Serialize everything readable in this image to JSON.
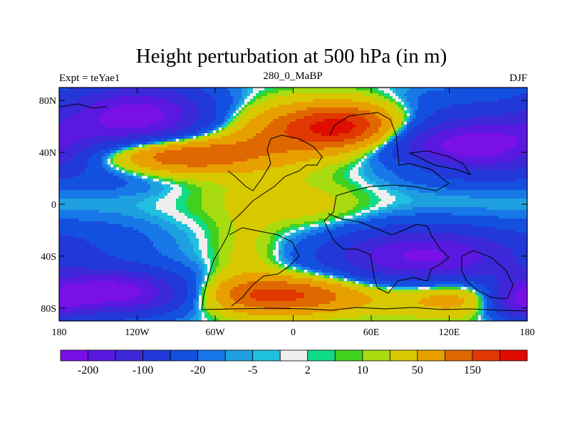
{
  "chart_data": {
    "type": "heatmap",
    "title": "Height perturbation at 500 hPa (in m)",
    "subtitle_left": "Expt = teYae1",
    "subtitle_center": "280_0_MaBP",
    "subtitle_right": "DJF",
    "xlabel": "",
    "ylabel": "",
    "x_range": [
      -180,
      180
    ],
    "y_range": [
      -90,
      90
    ],
    "x_ticks": [
      {
        "value": -180,
        "label": "180"
      },
      {
        "value": -120,
        "label": "120W"
      },
      {
        "value": -60,
        "label": "60W"
      },
      {
        "value": 0,
        "label": "0"
      },
      {
        "value": 60,
        "label": "60E"
      },
      {
        "value": 120,
        "label": "120E"
      },
      {
        "value": 180,
        "label": "180"
      }
    ],
    "y_ticks": [
      {
        "value": 80,
        "label": "80N"
      },
      {
        "value": 40,
        "label": "40N"
      },
      {
        "value": 0,
        "label": "0"
      },
      {
        "value": -40,
        "label": "40S"
      },
      {
        "value": -80,
        "label": "80S"
      }
    ],
    "colorbar": {
      "boundaries": [
        -250,
        -200,
        -150,
        -100,
        -50,
        -20,
        -10,
        -5,
        -2,
        2,
        5,
        10,
        20,
        50,
        100,
        150,
        200
      ],
      "colors": [
        "#7a10e8",
        "#5a18e0",
        "#3c28d8",
        "#2238d8",
        "#1450e0",
        "#1878e8",
        "#1ea0e0",
        "#20c0e0",
        "#eeeeee",
        "#10dc88",
        "#40d020",
        "#a8dc10",
        "#d8c800",
        "#e8a000",
        "#e06800",
        "#e03800",
        "#e00c00"
      ],
      "tick_labels": [
        {
          "index": 1,
          "label": "-200"
        },
        {
          "index": 3,
          "label": "-100"
        },
        {
          "index": 5,
          "label": "-20"
        },
        {
          "index": 7,
          "label": "-5"
        },
        {
          "index": 9,
          "label": "2"
        },
        {
          "index": 11,
          "label": "10"
        },
        {
          "index": 13,
          "label": "50"
        },
        {
          "index": 15,
          "label": "150"
        }
      ]
    },
    "field_centers": [
      {
        "lon": -120,
        "lat": 68,
        "value": -230,
        "slon": 40,
        "slat": 17
      },
      {
        "lon": -135,
        "lat": 22,
        "value": -30,
        "slon": 40,
        "slat": 10
      },
      {
        "lon": -90,
        "lat": 38,
        "value": 170,
        "slon": 45,
        "slat": 10
      },
      {
        "lon": -10,
        "lat": 55,
        "value": 90,
        "slon": 35,
        "slat": 15
      },
      {
        "lon": 40,
        "lat": 60,
        "value": 200,
        "slon": 30,
        "slat": 12
      },
      {
        "lon": 140,
        "lat": 45,
        "value": -240,
        "slon": 45,
        "slat": 15
      },
      {
        "lon": 120,
        "lat": 80,
        "value": -25,
        "slon": 35,
        "slat": 10
      },
      {
        "lon": -20,
        "lat": 5,
        "value": 25,
        "slon": 40,
        "slat": 14
      },
      {
        "lon": 20,
        "lat": -5,
        "value": 15,
        "slon": 30,
        "slat": 12
      },
      {
        "lon": 100,
        "lat": 30,
        "value": 30,
        "slon": 25,
        "slat": 6
      },
      {
        "lon": 100,
        "lat": -40,
        "value": -210,
        "slon": 50,
        "slat": 15
      },
      {
        "lon": -150,
        "lat": -30,
        "value": -30,
        "slon": 40,
        "slat": 15
      },
      {
        "lon": -140,
        "lat": -68,
        "value": -240,
        "slon": 40,
        "slat": 12
      },
      {
        "lon": -35,
        "lat": -40,
        "value": 30,
        "slon": 18,
        "slat": 22
      },
      {
        "lon": -20,
        "lat": -70,
        "value": 150,
        "slon": 35,
        "slat": 10
      },
      {
        "lon": 130,
        "lat": -72,
        "value": 90,
        "slon": 40,
        "slat": 10
      },
      {
        "lon": 175,
        "lat": -75,
        "value": -150,
        "slon": 18,
        "slat": 10
      },
      {
        "lon": 30,
        "lat": -70,
        "value": 60,
        "slon": 30,
        "slat": 10
      }
    ]
  }
}
